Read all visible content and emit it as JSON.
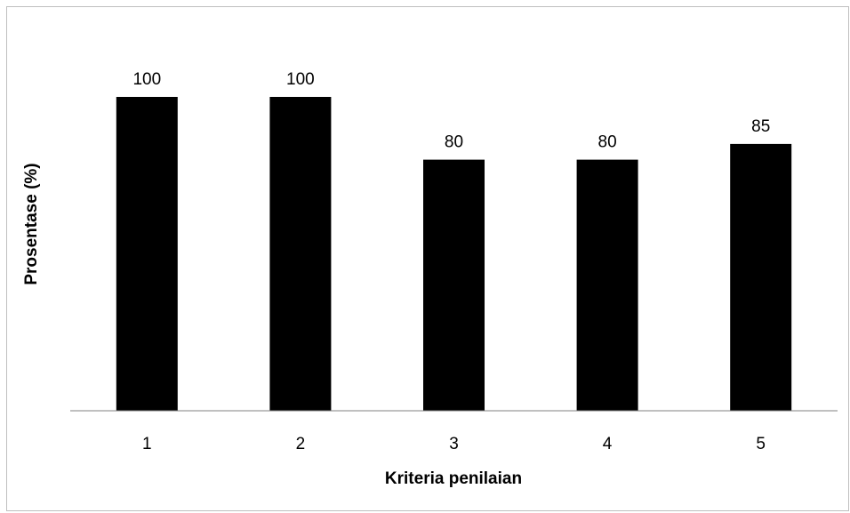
{
  "chart_data": {
    "type": "bar",
    "categories": [
      "1",
      "2",
      "3",
      "4",
      "5"
    ],
    "values": [
      100,
      100,
      80,
      80,
      85
    ],
    "data_labels": [
      "100",
      "100",
      "80",
      "80",
      "85"
    ],
    "title": "",
    "xlabel": "Kriteria penilaian",
    "ylabel": "Prosentase (%)",
    "ylim": [
      0,
      100
    ],
    "grid": false,
    "legend": "none",
    "bar_color": "#000000",
    "axis_color": "#808080"
  }
}
